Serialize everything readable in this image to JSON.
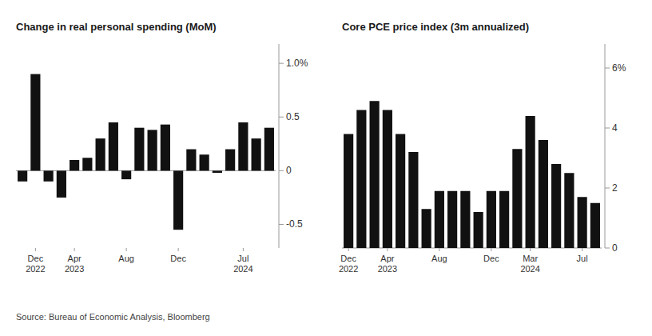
{
  "chart_data": [
    {
      "type": "bar",
      "title": "Change in real personal spending (MoM)",
      "categories": [
        null,
        "Dec\n2022",
        null,
        null,
        "Apr\n2023",
        null,
        null,
        null,
        "Aug",
        null,
        null,
        null,
        "Dec",
        null,
        null,
        null,
        null,
        "Jul\n2024",
        null,
        null
      ],
      "values": [
        -0.1,
        0.9,
        -0.1,
        -0.25,
        0.1,
        0.12,
        0.3,
        0.45,
        -0.08,
        0.4,
        0.38,
        0.43,
        -0.55,
        0.2,
        0.15,
        -0.02,
        0.2,
        0.45,
        0.3,
        0.4
      ],
      "color": "#111111",
      "ylim": [
        -0.72,
        1.18
      ],
      "yticks": [
        -0.5,
        0,
        0.5,
        {
          "value": 1.0,
          "label": "1.0%"
        }
      ],
      "grid": false,
      "annotations": [
        "Source: Bureau of Economic Analysis, Bloomberg"
      ]
    },
    {
      "type": "bar",
      "title": "Core PCE price index (3m annualized)",
      "categories": [
        "Dec\n2022",
        null,
        null,
        "Apr\n2023",
        null,
        null,
        null,
        "Aug",
        null,
        null,
        null,
        "Dec",
        null,
        null,
        "Mar\n2024",
        null,
        null,
        null,
        "Jul",
        null
      ],
      "values": [
        3.8,
        4.6,
        4.9,
        4.6,
        3.8,
        3.2,
        1.3,
        1.9,
        1.9,
        1.9,
        1.2,
        1.9,
        1.9,
        3.3,
        4.4,
        3.6,
        2.8,
        2.5,
        1.7,
        1.5
      ],
      "color": "#111111",
      "ylim": [
        0,
        6.8
      ],
      "yticks": [
        0,
        2,
        4,
        {
          "value": 6,
          "label": "6%"
        }
      ],
      "grid": false
    }
  ]
}
